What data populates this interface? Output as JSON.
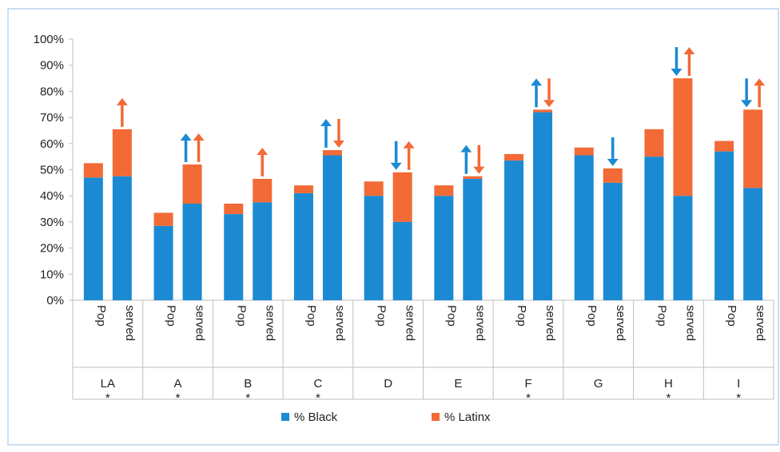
{
  "chart_data": {
    "type": "bar",
    "stacked": true,
    "ylim": [
      0,
      100
    ],
    "yticks": [
      0,
      10,
      20,
      30,
      40,
      50,
      60,
      70,
      80,
      90,
      100
    ],
    "ytick_suffix": "%",
    "grid": false,
    "legend_position": "bottom-center",
    "colors": {
      "black": "#1b8ad3",
      "latinx": "#f26a36",
      "axis": "#bfbfbf",
      "frame": "#b8d3ea"
    },
    "series": [
      {
        "key": "black",
        "name": "% Black"
      },
      {
        "key": "latinx",
        "name": "% Latinx"
      }
    ],
    "groups": [
      {
        "name": "LA",
        "star": "*",
        "bars": [
          {
            "label": "Pop",
            "black": 47,
            "latinx": 5.5,
            "arrows": []
          },
          {
            "label": "served",
            "black": 47.5,
            "latinx": 18,
            "arrows": [
              {
                "series": "latinx",
                "dir": "up"
              }
            ]
          }
        ]
      },
      {
        "name": "A",
        "star": "*",
        "bars": [
          {
            "label": "Pop",
            "black": 28.5,
            "latinx": 5,
            "arrows": []
          },
          {
            "label": "served",
            "black": 37,
            "latinx": 15,
            "arrows": [
              {
                "series": "black",
                "dir": "up"
              },
              {
                "series": "latinx",
                "dir": "up"
              }
            ]
          }
        ]
      },
      {
        "name": "B",
        "star": "*",
        "bars": [
          {
            "label": "Pop",
            "black": 33,
            "latinx": 4,
            "arrows": []
          },
          {
            "label": "served",
            "black": 37.5,
            "latinx": 9,
            "arrows": [
              {
                "series": "latinx",
                "dir": "up"
              }
            ]
          }
        ]
      },
      {
        "name": "C",
        "star": "*",
        "bars": [
          {
            "label": "Pop",
            "black": 41,
            "latinx": 3,
            "arrows": []
          },
          {
            "label": "served",
            "black": 55.5,
            "latinx": 2,
            "arrows": [
              {
                "series": "black",
                "dir": "up"
              },
              {
                "series": "latinx",
                "dir": "down"
              }
            ]
          }
        ]
      },
      {
        "name": "D",
        "star": "",
        "bars": [
          {
            "label": "Pop",
            "black": 40,
            "latinx": 5.5,
            "arrows": []
          },
          {
            "label": "served",
            "black": 30,
            "latinx": 19,
            "arrows": [
              {
                "series": "black",
                "dir": "down"
              },
              {
                "series": "latinx",
                "dir": "up"
              }
            ]
          }
        ]
      },
      {
        "name": "E",
        "star": "",
        "bars": [
          {
            "label": "Pop",
            "black": 40,
            "latinx": 4,
            "arrows": []
          },
          {
            "label": "served",
            "black": 46.5,
            "latinx": 1,
            "arrows": [
              {
                "series": "black",
                "dir": "up"
              },
              {
                "series": "latinx",
                "dir": "down"
              }
            ]
          }
        ]
      },
      {
        "name": "F",
        "star": "*",
        "bars": [
          {
            "label": "Pop",
            "black": 53.5,
            "latinx": 2.5,
            "arrows": []
          },
          {
            "label": "served",
            "black": 72,
            "latinx": 1,
            "arrows": [
              {
                "series": "black",
                "dir": "up"
              },
              {
                "series": "latinx",
                "dir": "down"
              }
            ]
          }
        ]
      },
      {
        "name": "G",
        "star": "",
        "bars": [
          {
            "label": "Pop",
            "black": 55.5,
            "latinx": 3,
            "arrows": []
          },
          {
            "label": "served",
            "black": 45,
            "latinx": 5.5,
            "arrows": [
              {
                "series": "black",
                "dir": "down"
              }
            ]
          }
        ]
      },
      {
        "name": "H",
        "star": "*",
        "bars": [
          {
            "label": "Pop",
            "black": 55,
            "latinx": 10.5,
            "arrows": []
          },
          {
            "label": "served",
            "black": 40,
            "latinx": 45,
            "arrows": [
              {
                "series": "black",
                "dir": "down"
              },
              {
                "series": "latinx",
                "dir": "up"
              }
            ]
          }
        ]
      },
      {
        "name": "I",
        "star": "*",
        "bars": [
          {
            "label": "Pop",
            "black": 57,
            "latinx": 4,
            "arrows": []
          },
          {
            "label": "served",
            "black": 43,
            "latinx": 30,
            "arrows": [
              {
                "series": "black",
                "dir": "down"
              },
              {
                "series": "latinx",
                "dir": "up"
              }
            ]
          }
        ]
      }
    ]
  }
}
